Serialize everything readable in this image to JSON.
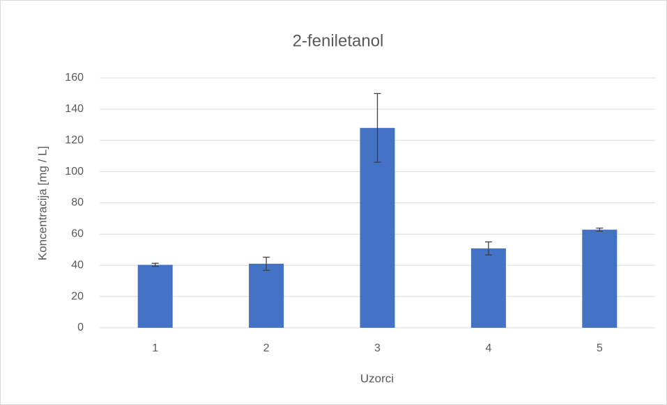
{
  "chart_data": {
    "type": "bar",
    "title": "2-feniletanol",
    "x_label": "Uzorci",
    "y_label": "Koncentracija [mg / L]",
    "categories": [
      "1",
      "2",
      "3",
      "4",
      "5"
    ],
    "values": [
      40.3,
      41,
      128,
      50.8,
      62.8
    ],
    "errors": [
      1,
      4.2,
      22,
      4.2,
      1
    ],
    "color": "#4472c4",
    "ylim": [
      0,
      160
    ],
    "yticks": [
      0,
      20,
      40,
      60,
      80,
      100,
      120,
      140,
      160
    ],
    "grid": true
  }
}
